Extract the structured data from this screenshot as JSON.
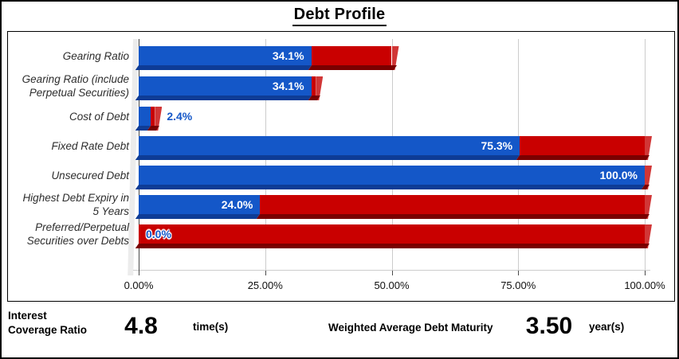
{
  "title": "Debt Profile",
  "colors": {
    "bar_blue": "#1457C8",
    "bar_blue_dark": "#0E3C96",
    "bar_red": "#C90000",
    "bar_red_dark": "#7A0000",
    "bar_red_cap": "#D13636",
    "outside_label_blue": "#1457C8",
    "wall_gray": "#ECECEC",
    "gridline_gray": "#CCCCCC"
  },
  "chart_data": {
    "type": "bar",
    "orientation": "horizontal",
    "title": "Debt Profile",
    "xlabel": "",
    "ylabel": "",
    "xlim": [
      0,
      100
    ],
    "grid": "vertical",
    "x_ticks": [
      "0.00%",
      "25.00%",
      "50.00%",
      "75.00%",
      "100.00%"
    ],
    "series_note": "blue segment = metric value, red segment = remainder of stacked bar",
    "rows": [
      {
        "label": "Gearing Ratio",
        "value_pct": 34.1,
        "total_pct": 50.0,
        "value_label": "34.1%",
        "label_placement": "inside"
      },
      {
        "label": "Gearing Ratio (include\nPerpetual Securities)",
        "value_pct": 34.1,
        "total_pct": 35.0,
        "value_label": "34.1%",
        "label_placement": "inside"
      },
      {
        "label": "Cost of Debt",
        "value_pct": 2.4,
        "total_pct": 3.2,
        "value_label": "2.4%",
        "label_placement": "outside"
      },
      {
        "label": "Fixed Rate Debt",
        "value_pct": 75.3,
        "total_pct": 100.0,
        "value_label": "75.3%",
        "label_placement": "inside"
      },
      {
        "label": "Unsecured Debt",
        "value_pct": 100.0,
        "total_pct": 100.0,
        "value_label": "100.0%",
        "label_placement": "inside"
      },
      {
        "label": "Highest Debt Expiry in\n5 Years",
        "value_pct": 24.0,
        "total_pct": 100.0,
        "value_label": "24.0%",
        "label_placement": "inside"
      },
      {
        "label": "Preferred/Perpetual\nSecurities over Debts",
        "value_pct": 0.0,
        "total_pct": 100.0,
        "value_label": "0.0%",
        "label_placement": "inside-left-halo"
      }
    ]
  },
  "metrics": {
    "interest_coverage": {
      "label": "Interest\nCoverage Ratio",
      "value": "4.8",
      "unit": "time(s)"
    },
    "debt_maturity": {
      "label": "Weighted Average Debt Maturity",
      "value": "3.50",
      "unit": "year(s)"
    }
  }
}
